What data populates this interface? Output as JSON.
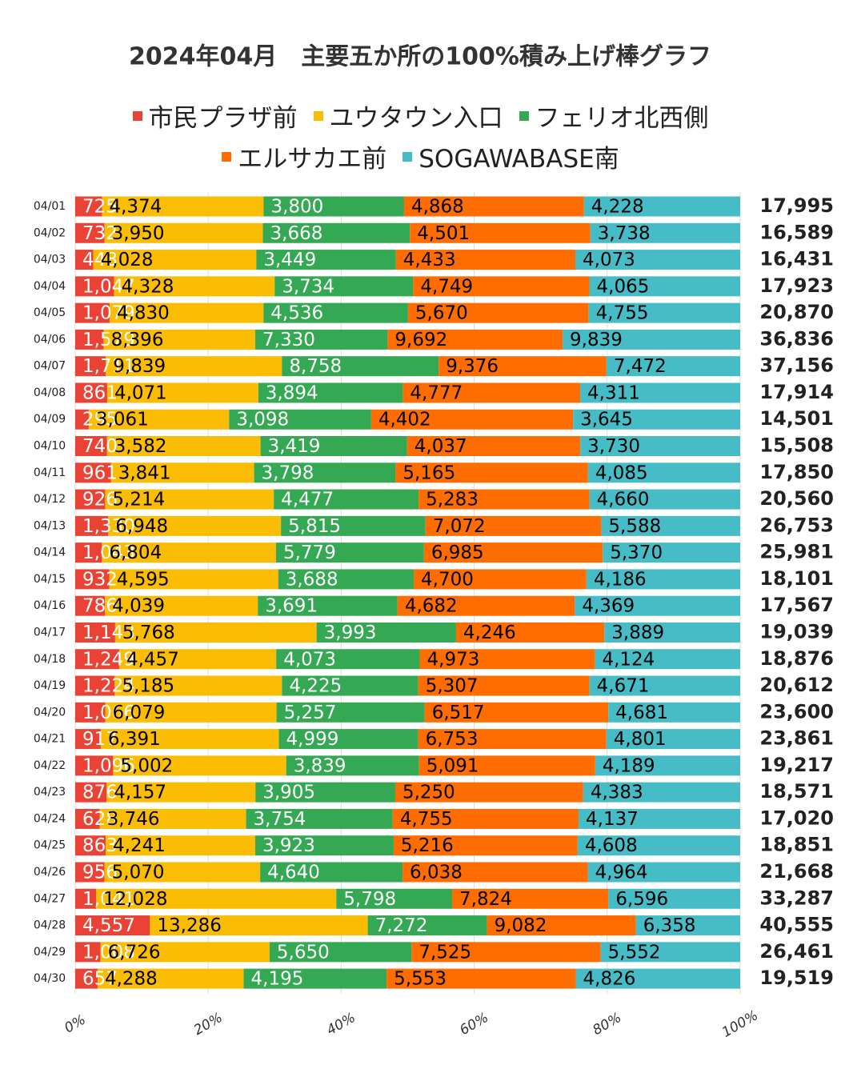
{
  "chart_data": {
    "type": "stacked-bar-100",
    "title": "2024年04月　主要五か所の100%積み上げ棒グラフ",
    "categories": [
      "04/01",
      "04/02",
      "04/03",
      "04/04",
      "04/05",
      "04/06",
      "04/07",
      "04/08",
      "04/09",
      "04/10",
      "04/11",
      "04/12",
      "04/13",
      "04/14",
      "04/15",
      "04/16",
      "04/17",
      "04/18",
      "04/19",
      "04/20",
      "04/21",
      "04/22",
      "04/23",
      "04/24",
      "04/25",
      "04/26",
      "04/27",
      "04/28",
      "04/29",
      "04/30"
    ],
    "series": [
      {
        "name": "市民プラザ前",
        "color": "#ea4335",
        "label_color": "#ffffff",
        "values": [
          725,
          732,
          448,
          1047,
          1079,
          1579,
          1711,
          861,
          295,
          740,
          961,
          926,
          1330,
          1043,
          932,
          786,
          1143,
          1249,
          1224,
          1066,
          917,
          1096,
          876,
          628,
          863,
          956,
          1041,
          4557,
          1008,
          657
        ],
        "value_labels": [
          "725",
          "732",
          "448",
          "1,047",
          "1,079",
          "1,579",
          "1,711",
          "861",
          "295",
          "740",
          "961",
          "926",
          "1,330",
          "1,043",
          "932",
          "786",
          "1,143",
          "1,249",
          "1,224",
          "1,066",
          "917",
          "1,096",
          "876",
          "628",
          "863",
          "956",
          "1,041",
          "4,557",
          "1,008",
          "657"
        ]
      },
      {
        "name": "ユウタウン入口",
        "color": "#fbbc04",
        "label_color": "#000000",
        "values": [
          4374,
          3950,
          4028,
          4328,
          4830,
          8396,
          9839,
          4071,
          3061,
          3582,
          3841,
          5214,
          6948,
          6804,
          4595,
          4039,
          5768,
          4457,
          5185,
          6079,
          6391,
          5002,
          4157,
          3746,
          4241,
          5070,
          12028,
          13286,
          6726,
          4288
        ],
        "value_labels": [
          "4,374",
          "3,950",
          "4,028",
          "4,328",
          "4,830",
          "8,396",
          "9,839",
          "4,071",
          "3,061",
          "3,582",
          "3,841",
          "5,214",
          "6,948",
          "6,804",
          "4,595",
          "4,039",
          "5,768",
          "4,457",
          "5,185",
          "6,079",
          "6,391",
          "5,002",
          "4,157",
          "3,746",
          "4,241",
          "5,070",
          "12,028",
          "13,286",
          "6,726",
          "4,288"
        ]
      },
      {
        "name": "フェリオ北西側",
        "color": "#34a853",
        "label_color": "#ffffff",
        "values": [
          3800,
          3668,
          3449,
          3734,
          4536,
          7330,
          8758,
          3894,
          3098,
          3419,
          3798,
          4477,
          5815,
          5779,
          3688,
          3691,
          3993,
          4073,
          4225,
          5257,
          4999,
          3839,
          3905,
          3754,
          3923,
          4640,
          5798,
          7272,
          5650,
          4195
        ],
        "value_labels": [
          "3,800",
          "3,668",
          "3,449",
          "3,734",
          "4,536",
          "7,330",
          "8,758",
          "3,894",
          "3,098",
          "3,419",
          "3,798",
          "4,477",
          "5,815",
          "5,779",
          "3,688",
          "3,691",
          "3,993",
          "4,073",
          "4,225",
          "5,257",
          "4,999",
          "3,839",
          "3,905",
          "3,754",
          "3,923",
          "4,640",
          "5,798",
          "7,272",
          "5,650",
          "4,195"
        ]
      },
      {
        "name": "エルサカエ前",
        "color": "#ff6d01",
        "label_color": "#000000",
        "values": [
          4868,
          4501,
          4433,
          4749,
          5670,
          9692,
          9376,
          4777,
          4402,
          4037,
          5165,
          5283,
          7072,
          6985,
          4700,
          4682,
          4246,
          4973,
          5307,
          6517,
          6753,
          5091,
          5250,
          4755,
          5216,
          6038,
          7824,
          9082,
          7525,
          5553
        ],
        "value_labels": [
          "4,868",
          "4,501",
          "4,433",
          "4,749",
          "5,670",
          "9,692",
          "9,376",
          "4,777",
          "4,402",
          "4,037",
          "5,165",
          "5,283",
          "7,072",
          "6,985",
          "4,700",
          "4,682",
          "4,246",
          "4,973",
          "5,307",
          "6,517",
          "6,753",
          "5,091",
          "5,250",
          "4,755",
          "5,216",
          "6,038",
          "7,824",
          "9,082",
          "7,525",
          "5,553"
        ]
      },
      {
        "name": "SOGAWABASE南",
        "color": "#46bdc6",
        "label_color": "#000000",
        "values": [
          4228,
          3738,
          4073,
          4065,
          4755,
          9839,
          7472,
          4311,
          3645,
          3730,
          4085,
          4660,
          5588,
          5370,
          4186,
          4369,
          3889,
          4124,
          4671,
          4681,
          4801,
          4189,
          4383,
          4137,
          4608,
          4964,
          6596,
          6358,
          5552,
          4826
        ],
        "value_labels": [
          "4,228",
          "3,738",
          "4,073",
          "4,065",
          "4,755",
          "9,839",
          "7,472",
          "4,311",
          "3,645",
          "3,730",
          "4,085",
          "4,660",
          "5,588",
          "5,370",
          "4,186",
          "4,369",
          "3,889",
          "4,124",
          "4,671",
          "4,681",
          "4,801",
          "4,189",
          "4,383",
          "4,137",
          "4,608",
          "4,964",
          "6,596",
          "6,358",
          "5,552",
          "4,826"
        ]
      }
    ],
    "totals": [
      "17,995",
      "16,589",
      "16,431",
      "17,923",
      "20,870",
      "36,836",
      "37,156",
      "17,914",
      "14,501",
      "15,508",
      "17,850",
      "20,560",
      "26,753",
      "25,981",
      "18,101",
      "17,567",
      "19,039",
      "18,876",
      "20,612",
      "23,600",
      "23,861",
      "19,217",
      "18,571",
      "17,020",
      "18,851",
      "21,668",
      "33,287",
      "40,555",
      "26,461",
      "19,519"
    ],
    "xlim": [
      0,
      100
    ],
    "xticks": [
      {
        "value": 0,
        "label": "0%"
      },
      {
        "value": 20,
        "label": "20%"
      },
      {
        "value": 40,
        "label": "40%"
      },
      {
        "value": 60,
        "label": "60%"
      },
      {
        "value": 80,
        "label": "80%"
      },
      {
        "value": 100,
        "label": "100%"
      }
    ],
    "grid": true
  }
}
